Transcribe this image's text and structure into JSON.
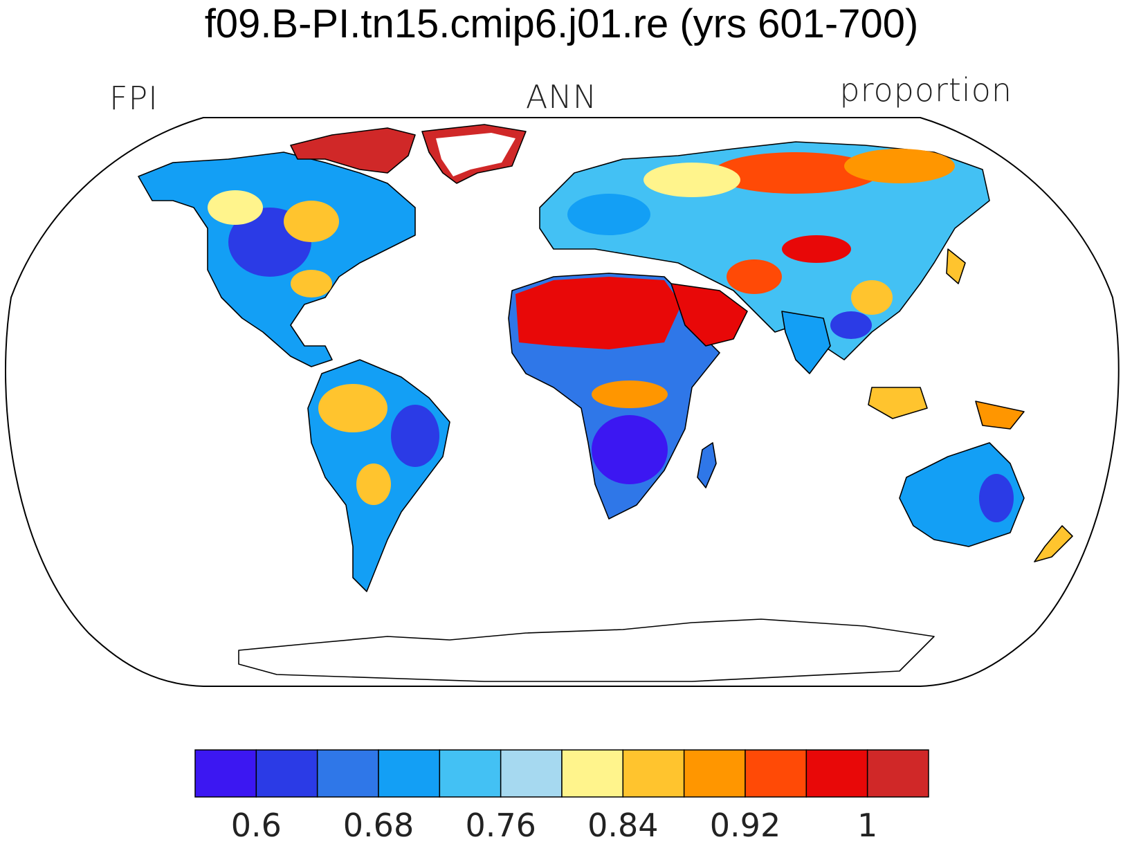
{
  "title": "f09.B-PI.tn15.cmip6.j01.re (yrs 601-700)",
  "left_label": "FPI",
  "center_label": "ANN",
  "right_label": "proportion",
  "colorbar": {
    "colors": [
      "#3c17f2",
      "#2b3be6",
      "#2f77e8",
      "#139ff5",
      "#43c1f4",
      "#a6d9f0",
      "#fff48c",
      "#ffc42e",
      "#ff9600",
      "#ff4a06",
      "#e80808",
      "#d02828"
    ],
    "tick_labels": [
      "0.6",
      "0.68",
      "0.76",
      "0.84",
      "0.92",
      "1"
    ]
  },
  "map": {
    "projection": "Robinson",
    "land_fill": "#ffffff",
    "regions": [
      {
        "name": "north-america",
        "color": "#2f77e8"
      },
      {
        "name": "south-america",
        "color": "#43c1f4"
      },
      {
        "name": "amazon",
        "color": "#ffc42e"
      },
      {
        "name": "sahara",
        "color": "#e80808"
      },
      {
        "name": "central-africa",
        "color": "#2b3be6"
      },
      {
        "name": "siberia",
        "color": "#ff4a06"
      },
      {
        "name": "australia",
        "color": "#139ff5"
      },
      {
        "name": "greenland",
        "color": "#d02828"
      }
    ]
  }
}
